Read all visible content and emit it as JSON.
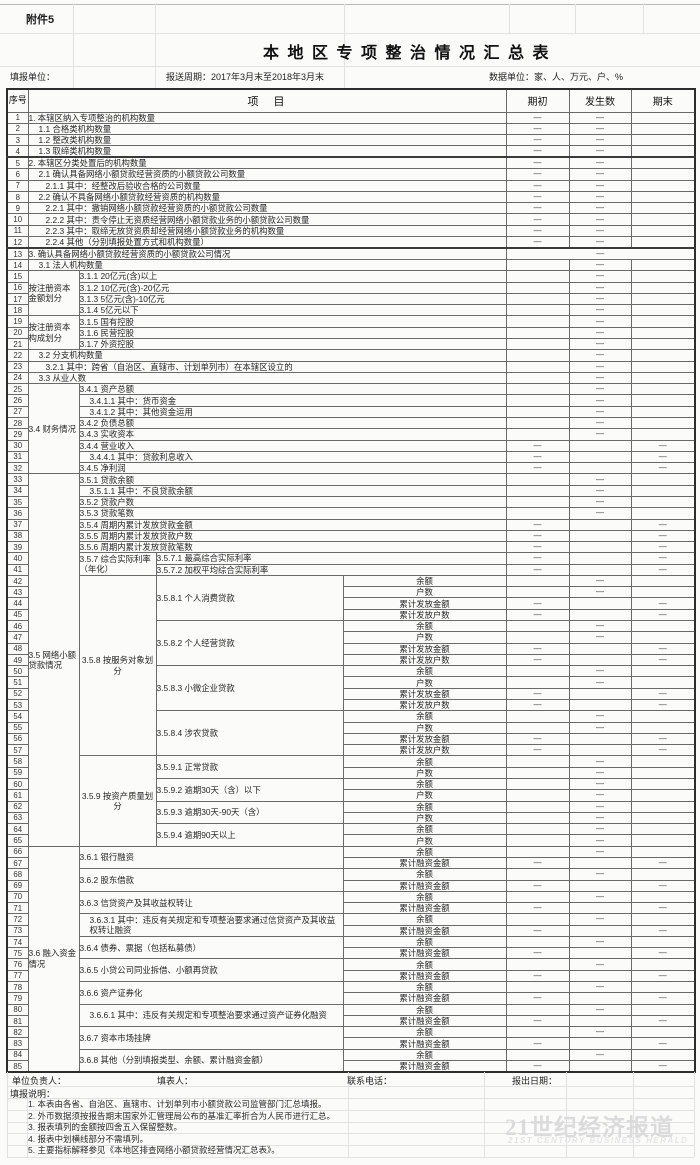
{
  "page": {
    "attachment": "附件5",
    "title": "本地区专项整治情况汇总表",
    "fill_unit": "填报单位：",
    "period": "报送周期：2017年3月末至2018年3月末",
    "data_unit": "数据单位：家、人、万元、户、%"
  },
  "table": {
    "dash": "—",
    "header": {
      "seq": "序号",
      "item": "项　目",
      "cols": [
        "期初",
        "发生数",
        "期末"
      ]
    },
    "rows": [
      {
        "n": 1,
        "c": [
          {
            "k": "i4",
            "t": "1. 本辖区纳入专项整治的机构数量"
          }
        ],
        "d": "pe"
      },
      {
        "n": 2,
        "c": [
          {
            "k": "i4",
            "t": "1.1  合格类机构数量",
            "in": 1
          }
        ],
        "d": "pe"
      },
      {
        "n": 3,
        "c": [
          {
            "k": "i4",
            "t": "1.2  整改类机构数量",
            "in": 1
          }
        ],
        "d": "pe"
      },
      {
        "n": 4,
        "c": [
          {
            "k": "i4",
            "t": "1.3  取缔类机构数量",
            "in": 1
          }
        ],
        "d": "pe"
      },
      {
        "n": 5,
        "c": [
          {
            "k": "i4",
            "t": "2. 本辖区分类处置后的机构数量"
          }
        ],
        "d": "pe",
        "bt": 1
      },
      {
        "n": 6,
        "c": [
          {
            "k": "i4",
            "t": "2.1  确认具备网络小额贷款经营资质的小额贷款公司数量",
            "in": 1
          }
        ],
        "d": "pe"
      },
      {
        "n": 7,
        "c": [
          {
            "k": "i4",
            "t": "2.1.1 其中：经整改后验收合格的公司数量",
            "in": 2
          }
        ],
        "d": "pe"
      },
      {
        "n": 8,
        "c": [
          {
            "k": "i4",
            "t": "2.2  确认不具备网络小额贷款经营资质的机构数量",
            "in": 1
          }
        ],
        "d": "pe"
      },
      {
        "n": 9,
        "c": [
          {
            "k": "i4",
            "t": "2.2.1 其中：撤销网络小额贷款经营资质的小额贷款公司数量",
            "in": 2
          }
        ],
        "d": "pe"
      },
      {
        "n": 10,
        "c": [
          {
            "k": "i4",
            "t": "2.2.2 其中：责令停止无资质经营网络小额贷款业务的小额贷款公司数量",
            "in": 2
          }
        ],
        "d": "pe"
      },
      {
        "n": 11,
        "c": [
          {
            "k": "i4",
            "t": "2.2.3 其中：取缔无放贷资质却经营网络小额贷款业务的机构数量",
            "in": 2
          }
        ],
        "d": "pe"
      },
      {
        "n": 12,
        "c": [
          {
            "k": "i4",
            "t": "2.2.4 其他（分别填报处置方式和机构数量）",
            "in": 2
          }
        ],
        "d": "pe"
      },
      {
        "n": 13,
        "c": [
          {
            "k": "i4",
            "t": "3. 确认具备网络小额贷款经营资质的小额贷款公司情况"
          }
        ],
        "d": "m",
        "bt": 1
      },
      {
        "n": 14,
        "c": [
          {
            "k": "i4",
            "t": "3.1 法人机构数量",
            "in": 1
          }
        ],
        "d": "f"
      },
      {
        "n": 15,
        "c": [
          {
            "k": "g",
            "t": "按注册资本金额划分",
            "rs": 4
          },
          {
            "k": "i3",
            "t": "3.1.1  20亿元(含)以上"
          }
        ],
        "d": "f"
      },
      {
        "n": 16,
        "c": [
          {
            "k": "i3",
            "t": "3.1.2  10亿元(含)-20亿元"
          }
        ],
        "d": "f"
      },
      {
        "n": 17,
        "c": [
          {
            "k": "i3",
            "t": "3.1.3  5亿元(含)-10亿元"
          }
        ],
        "d": "f"
      },
      {
        "n": 18,
        "c": [
          {
            "k": "i3",
            "t": "3.1.4  5亿元以下"
          }
        ],
        "d": "f"
      },
      {
        "n": 19,
        "c": [
          {
            "k": "g",
            "t": "按注册资本构成划分",
            "rs": 3
          },
          {
            "k": "i3",
            "t": "3.1.5  国有控股"
          }
        ],
        "d": "f"
      },
      {
        "n": 20,
        "c": [
          {
            "k": "i3",
            "t": "3.1.6  民营控股"
          }
        ],
        "d": "f"
      },
      {
        "n": 21,
        "c": [
          {
            "k": "i3",
            "t": "3.1.7  外资控股"
          }
        ],
        "d": "f"
      },
      {
        "n": 22,
        "c": [
          {
            "k": "i4",
            "t": "3.2 分支机构数量",
            "in": 1
          }
        ],
        "d": "f"
      },
      {
        "n": 23,
        "c": [
          {
            "k": "i4",
            "t": "3.2.1 其中：跨省（自治区、直辖市、计划单列市）在本辖区设立的",
            "in": 2
          }
        ],
        "d": "f"
      },
      {
        "n": 24,
        "c": [
          {
            "k": "i4",
            "t": "3.3 从业人数",
            "in": 1
          }
        ],
        "d": "f"
      },
      {
        "n": 25,
        "c": [
          {
            "k": "g",
            "t": "3.4 财务情况",
            "rs": 8
          },
          {
            "k": "i3",
            "t": "3.4.1  资产总额"
          }
        ],
        "d": "f"
      },
      {
        "n": 26,
        "c": [
          {
            "k": "i3",
            "t": "3.4.1.1  其中：货币资金",
            "in": 1
          }
        ],
        "d": "f"
      },
      {
        "n": 27,
        "c": [
          {
            "k": "i3",
            "t": "3.4.1.2  其中：其他资金运用",
            "in": 1
          }
        ],
        "d": "f"
      },
      {
        "n": 28,
        "c": [
          {
            "k": "i3",
            "t": "3.4.2  负债总额"
          }
        ],
        "d": "f"
      },
      {
        "n": 29,
        "c": [
          {
            "k": "i3",
            "t": "3.4.3  实收资本"
          }
        ],
        "d": "f"
      },
      {
        "n": 30,
        "c": [
          {
            "k": "i3",
            "t": "3.4.4  营业收入"
          }
        ],
        "d": "ie"
      },
      {
        "n": 31,
        "c": [
          {
            "k": "i3",
            "t": "3.4.4.1  其中：贷款利息收入",
            "in": 1
          }
        ],
        "d": "ie"
      },
      {
        "n": 32,
        "c": [
          {
            "k": "i3",
            "t": "3.4.5  净利润"
          }
        ],
        "d": "ie"
      },
      {
        "n": 33,
        "c": [
          {
            "k": "g",
            "t": "3.5 网络小额贷款情况",
            "rs": 33
          },
          {
            "k": "i3",
            "t": "3.5.1  贷款余额"
          }
        ],
        "d": "f"
      },
      {
        "n": 34,
        "c": [
          {
            "k": "i3",
            "t": "3.5.1.1  其中：不良贷款余额",
            "in": 1
          }
        ],
        "d": "f"
      },
      {
        "n": 35,
        "c": [
          {
            "k": "i3",
            "t": "3.5.2  贷款户数"
          }
        ],
        "d": "f"
      },
      {
        "n": 36,
        "c": [
          {
            "k": "i3",
            "t": "3.5.3  贷款笔数"
          }
        ],
        "d": "f"
      },
      {
        "n": 37,
        "c": [
          {
            "k": "i3",
            "t": "3.5.4  周期内累计发放贷款金额"
          }
        ],
        "d": "ie"
      },
      {
        "n": 38,
        "c": [
          {
            "k": "i3",
            "t": "3.5.5  周期内累计发放贷款户数"
          }
        ],
        "d": "ie"
      },
      {
        "n": 39,
        "c": [
          {
            "k": "i3",
            "t": "3.5.6  周期内累计发放贷款笔数"
          }
        ],
        "d": "ie"
      },
      {
        "n": 40,
        "c": [
          {
            "k": "s",
            "t": "3.5.7 综合实际利率（年化）",
            "rs": 2
          },
          {
            "k": "i2",
            "t": "3.5.7.1 最高综合实际利率"
          }
        ],
        "d": "ie"
      },
      {
        "n": 41,
        "c": [
          {
            "k": "i2",
            "t": "3.5.7.2 加权平均综合实际利率"
          }
        ],
        "d": "ie"
      },
      {
        "n": 42,
        "c": [
          {
            "k": "s",
            "t": "3.5.8 按服务对象划分",
            "rs": 16,
            "ct": 1
          },
          {
            "k": "it",
            "t": "3.5.8.1  个人消费贷款",
            "rs": 4
          },
          {
            "k": "sub",
            "t": "余额"
          }
        ],
        "d": "f"
      },
      {
        "n": 43,
        "c": [
          {
            "k": "sub",
            "t": "户数"
          }
        ],
        "d": "f"
      },
      {
        "n": 44,
        "c": [
          {
            "k": "sub",
            "t": "累计发放金额"
          }
        ],
        "d": "ie"
      },
      {
        "n": 45,
        "c": [
          {
            "k": "sub",
            "t": "累计发放户数"
          }
        ],
        "d": "ie"
      },
      {
        "n": 46,
        "c": [
          {
            "k": "it",
            "t": "3.5.8.2  个人经营贷款",
            "rs": 4
          },
          {
            "k": "sub",
            "t": "余额"
          }
        ],
        "d": "f"
      },
      {
        "n": 47,
        "c": [
          {
            "k": "sub",
            "t": "户数"
          }
        ],
        "d": "f"
      },
      {
        "n": 48,
        "c": [
          {
            "k": "sub",
            "t": "累计发放金额"
          }
        ],
        "d": "ie"
      },
      {
        "n": 49,
        "c": [
          {
            "k": "sub",
            "t": "累计发放户数"
          }
        ],
        "d": "ie"
      },
      {
        "n": 50,
        "c": [
          {
            "k": "it",
            "t": "3.5.8.3  小微企业贷款",
            "rs": 4
          },
          {
            "k": "sub",
            "t": "余额"
          }
        ],
        "d": "f"
      },
      {
        "n": 51,
        "c": [
          {
            "k": "sub",
            "t": "户数"
          }
        ],
        "d": "f"
      },
      {
        "n": 52,
        "c": [
          {
            "k": "sub",
            "t": "累计发放金额"
          }
        ],
        "d": "ie"
      },
      {
        "n": 53,
        "c": [
          {
            "k": "sub",
            "t": "累计发放户数"
          }
        ],
        "d": "ie"
      },
      {
        "n": 54,
        "c": [
          {
            "k": "it",
            "t": "3.5.8.4  涉农贷款",
            "rs": 4
          },
          {
            "k": "sub",
            "t": "余额"
          }
        ],
        "d": "f"
      },
      {
        "n": 55,
        "c": [
          {
            "k": "sub",
            "t": "户数"
          }
        ],
        "d": "f"
      },
      {
        "n": 56,
        "c": [
          {
            "k": "sub",
            "t": "累计发放金额"
          }
        ],
        "d": "ie"
      },
      {
        "n": 57,
        "c": [
          {
            "k": "sub",
            "t": "累计发放户数"
          }
        ],
        "d": "ie"
      },
      {
        "n": 58,
        "c": [
          {
            "k": "s",
            "t": "3.5.9  按资产质量划分",
            "rs": 8,
            "ct": 1
          },
          {
            "k": "it",
            "t": "3.5.9.1 正常贷款",
            "rs": 2
          },
          {
            "k": "sub",
            "t": "余额"
          }
        ],
        "d": "f"
      },
      {
        "n": 59,
        "c": [
          {
            "k": "sub",
            "t": "户数"
          }
        ],
        "d": "f"
      },
      {
        "n": 60,
        "c": [
          {
            "k": "it",
            "t": "3.5.9.2 逾期30天（含）以下",
            "rs": 2
          },
          {
            "k": "sub",
            "t": "余额"
          }
        ],
        "d": "f"
      },
      {
        "n": 61,
        "c": [
          {
            "k": "sub",
            "t": "户数"
          }
        ],
        "d": "f"
      },
      {
        "n": 62,
        "c": [
          {
            "k": "it",
            "t": "3.5.9.3 逾期30天-90天（含）",
            "rs": 2
          },
          {
            "k": "sub",
            "t": "余额"
          }
        ],
        "d": "f"
      },
      {
        "n": 63,
        "c": [
          {
            "k": "sub",
            "t": "户数"
          }
        ],
        "d": "f"
      },
      {
        "n": 64,
        "c": [
          {
            "k": "it",
            "t": "3.5.9.4 逾期90天以上",
            "rs": 2
          },
          {
            "k": "sub",
            "t": "余额"
          }
        ],
        "d": "f"
      },
      {
        "n": 65,
        "c": [
          {
            "k": "sub",
            "t": "户数"
          }
        ],
        "d": "f"
      },
      {
        "n": 66,
        "c": [
          {
            "k": "g",
            "t": "3.6 融入资金情况",
            "rs": 20
          },
          {
            "k": "i23",
            "t": "3.6.1  银行融资",
            "rs": 2
          },
          {
            "k": "sub",
            "t": "余额"
          }
        ],
        "d": "f"
      },
      {
        "n": 67,
        "c": [
          {
            "k": "sub",
            "t": "累计融资金额"
          }
        ],
        "d": "ie"
      },
      {
        "n": 68,
        "c": [
          {
            "k": "i23",
            "t": "3.6.2  股东借款",
            "rs": 2
          },
          {
            "k": "sub",
            "t": "余额"
          }
        ],
        "d": "f"
      },
      {
        "n": 69,
        "c": [
          {
            "k": "sub",
            "t": "累计融资金额"
          }
        ],
        "d": "ie"
      },
      {
        "n": 70,
        "c": [
          {
            "k": "i23",
            "t": "3.6.3  信贷资产及其收益权转让",
            "rs": 2
          },
          {
            "k": "sub",
            "t": "余额"
          }
        ],
        "d": "f"
      },
      {
        "n": 71,
        "c": [
          {
            "k": "sub",
            "t": "累计融资金额"
          }
        ],
        "d": "ie"
      },
      {
        "n": 72,
        "c": [
          {
            "k": "i23",
            "t": "3.6.3.1  其中：违反有关规定和专项整治要求通过信贷资产及其收益权转让融资",
            "rs": 2,
            "wr": 1,
            "in": 1
          },
          {
            "k": "sub",
            "t": "余额"
          }
        ],
        "d": "f"
      },
      {
        "n": 73,
        "c": [
          {
            "k": "sub",
            "t": "累计融资金额"
          }
        ],
        "d": "ie"
      },
      {
        "n": 74,
        "c": [
          {
            "k": "i23",
            "t": "3.6.4  债券、票据（包括私募债）",
            "rs": 2
          },
          {
            "k": "sub",
            "t": "余额"
          }
        ],
        "d": "f"
      },
      {
        "n": 75,
        "c": [
          {
            "k": "sub",
            "t": "累计融资金额"
          }
        ],
        "d": "ie"
      },
      {
        "n": 76,
        "c": [
          {
            "k": "i23",
            "t": "3.6.5  小贷公司同业拆借、小额再贷款",
            "rs": 2
          },
          {
            "k": "sub",
            "t": "余额"
          }
        ],
        "d": "f"
      },
      {
        "n": 77,
        "c": [
          {
            "k": "sub",
            "t": "累计融资金额"
          }
        ],
        "d": "ie"
      },
      {
        "n": 78,
        "c": [
          {
            "k": "i23",
            "t": "3.6.6  资产证券化",
            "rs": 2
          },
          {
            "k": "sub",
            "t": "余额"
          }
        ],
        "d": "f"
      },
      {
        "n": 79,
        "c": [
          {
            "k": "sub",
            "t": "累计融资金额"
          }
        ],
        "d": "ie"
      },
      {
        "n": 80,
        "c": [
          {
            "k": "i23",
            "t": "3.6.6.1  其中：违反有关规定和专项整治要求通过资产证券化融资",
            "rs": 2,
            "wr": 1,
            "in": 1
          },
          {
            "k": "sub",
            "t": "余额"
          }
        ],
        "d": "f"
      },
      {
        "n": 81,
        "c": [
          {
            "k": "sub",
            "t": "累计融资金额"
          }
        ],
        "d": "ie"
      },
      {
        "n": 82,
        "c": [
          {
            "k": "i23",
            "t": "3.6.7  资本市场挂牌",
            "rs": 2
          },
          {
            "k": "sub",
            "t": "余额"
          }
        ],
        "d": "f"
      },
      {
        "n": 83,
        "c": [
          {
            "k": "sub",
            "t": "累计融资金额"
          }
        ],
        "d": "ie"
      },
      {
        "n": 84,
        "c": [
          {
            "k": "i23",
            "t": "3.6.8  其他（分别填报类型、余额、累计融资金额）",
            "rs": 2
          },
          {
            "k": "sub",
            "t": "余额"
          }
        ],
        "d": "f"
      },
      {
        "n": 85,
        "c": [
          {
            "k": "sub",
            "t": "累计融资金额"
          }
        ],
        "d": "ie"
      }
    ]
  },
  "footer": {
    "responsible": "单位负责人：",
    "preparer": "填表人：",
    "phone": "联系电话：",
    "date": "报出日期：",
    "notes_label": "填报说明：",
    "notes": [
      "1. 本表由各省、自治区、直辖市、计划单列市小额贷款公司监管部门汇总填报。",
      "2. 外币数据须按报告期末国家外汇管理局公布的基准汇率折合为人民币进行汇总。",
      "3. 报表填列的金额按四舍五入保留整数。",
      "4. 报表中划横线部分不需填列。",
      "5. 主要指标解释参见《本地区排查网络小额贷款经营情况汇总表》。"
    ]
  },
  "watermark": {
    "cn": "21世纪经济报道",
    "en": "21ST CENTURY BUSINESS HERALD"
  }
}
